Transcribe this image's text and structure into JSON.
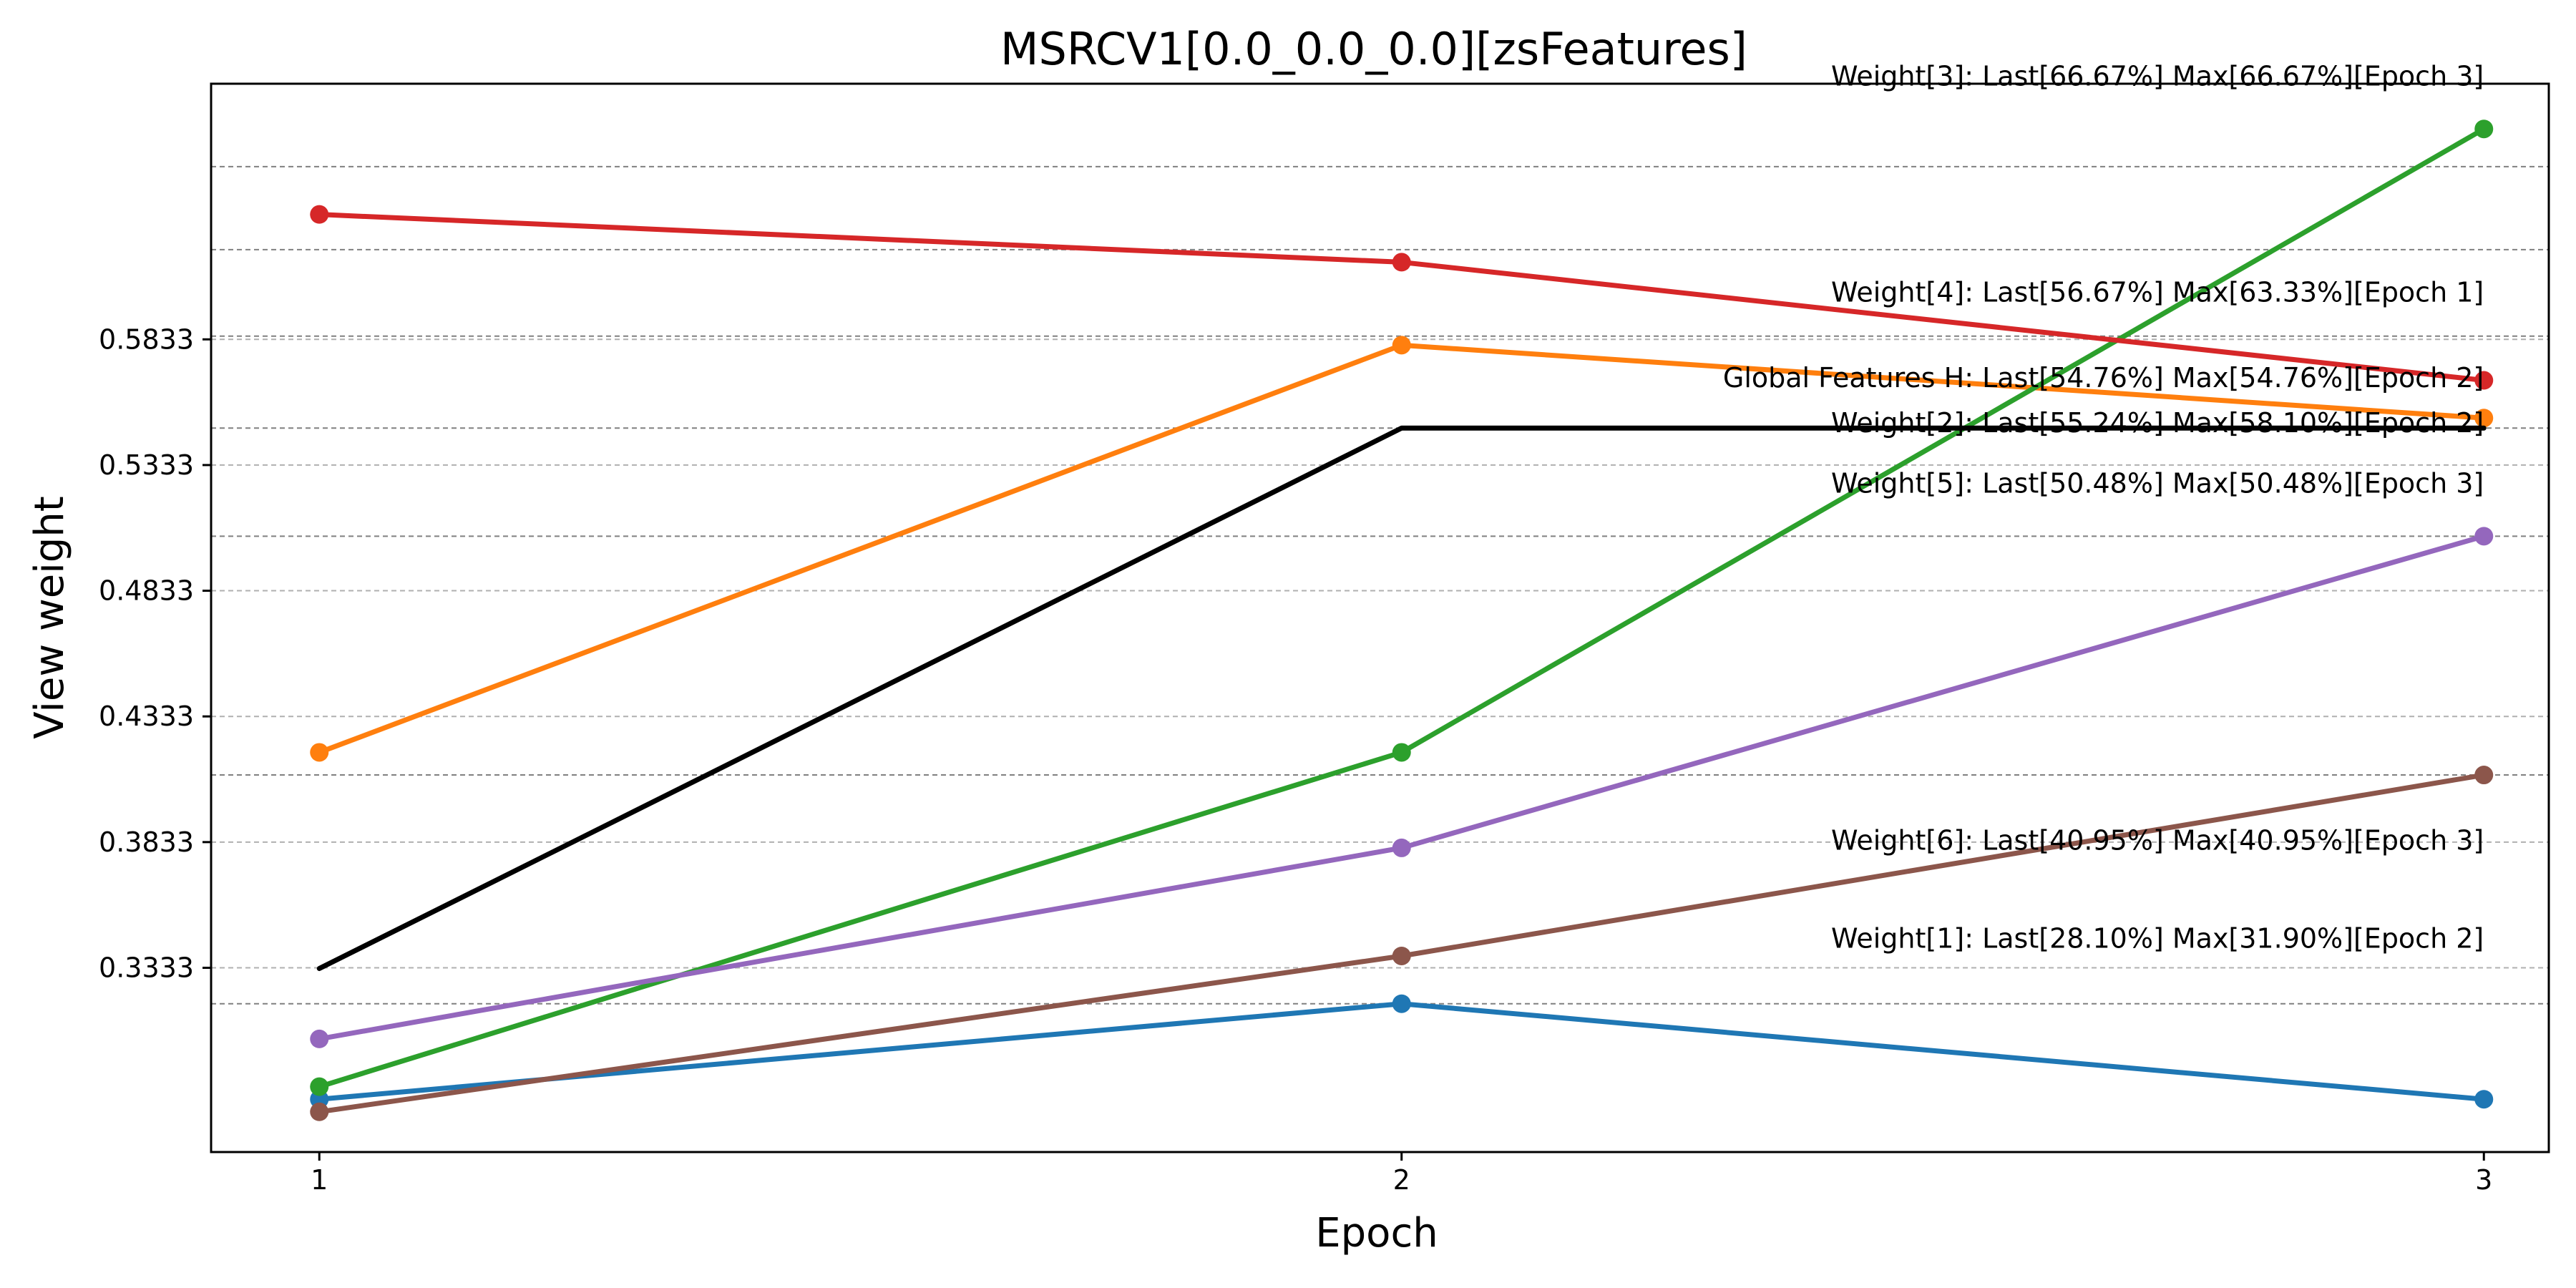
{
  "chart_data": {
    "type": "line",
    "title": "MSRCV1[0.0_0.0_0.0][zsFeatures]",
    "xlabel": "Epoch",
    "ylabel": "View weight",
    "x": [
      1,
      2,
      3
    ],
    "xlim": [
      0.9,
      3.06
    ],
    "ylim": [
      0.26,
      0.685
    ],
    "ytick_labels": [
      "0.3333",
      "0.3833",
      "0.4333",
      "0.4833",
      "0.5333",
      "0.5833"
    ],
    "grid": "horizontal dashed",
    "reference_lines_at": [
      0.319,
      0.619,
      0.505,
      0.41,
      0.548,
      0.652,
      0.5846
    ],
    "series": [
      {
        "color": "#1f77b4",
        "markers": true,
        "values": [
          0.281,
          0.319,
          0.281
        ]
      },
      {
        "color": "#ff7f0e",
        "markers": true,
        "values": [
          0.419,
          0.581,
          0.552
        ]
      },
      {
        "color": "#2ca02c",
        "markers": true,
        "values": [
          0.286,
          0.419,
          0.667
        ]
      },
      {
        "color": "#d62728",
        "markers": true,
        "values": [
          0.633,
          0.614,
          0.567
        ]
      },
      {
        "color": "#9467bd",
        "markers": true,
        "values": [
          0.305,
          0.381,
          0.505
        ]
      },
      {
        "color": "#8c564b",
        "markers": true,
        "values": [
          0.276,
          0.338,
          0.41
        ]
      },
      {
        "color": "#000000",
        "markers": false,
        "values": [
          0.333,
          0.548,
          0.548
        ]
      }
    ],
    "annotations": [
      {
        "text": "Weight[3]: Last[66.67%] Max[66.67%][Epoch 3]",
        "y": 0.688
      },
      {
        "text": "Weight[4]: Last[56.67%] Max[63.33%][Epoch 1]",
        "y": 0.602
      },
      {
        "text": "Global Features H: Last[54.76%] Max[54.76%][Epoch 2]",
        "y": 0.568
      },
      {
        "text": "Weight[2]: Last[55.24%] Max[58.10%][Epoch 2]",
        "y": 0.55
      },
      {
        "text": "Weight[5]: Last[50.48%] Max[50.48%][Epoch 3]",
        "y": 0.526
      },
      {
        "text": "Weight[6]: Last[40.95%] Max[40.95%][Epoch 3]",
        "y": 0.384
      },
      {
        "text": "Weight[1]: Last[28.10%] Max[31.90%][Epoch 2]",
        "y": 0.345
      }
    ]
  }
}
